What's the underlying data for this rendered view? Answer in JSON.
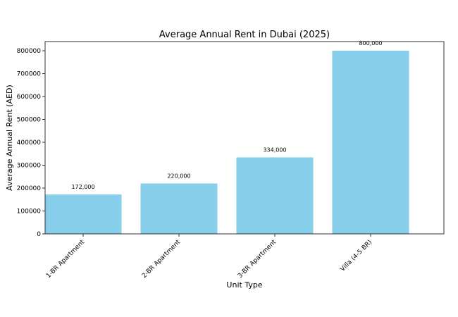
{
  "chart_data": {
    "type": "bar",
    "title": "Average Annual Rent in Dubai (2025)",
    "xlabel": "Unit Type",
    "ylabel": "Average Annual Rent (AED)",
    "categories": [
      "1-BR Apartment",
      "2-BR Apartment",
      "3-BR Apartment",
      "Villa (4-5 BR)"
    ],
    "values": [
      172000,
      220000,
      334000,
      800000
    ],
    "value_labels": [
      "172,000",
      "220,000",
      "334,000",
      "800,000"
    ],
    "ylim": [
      0,
      840000
    ],
    "yticks": [
      0,
      100000,
      200000,
      300000,
      400000,
      500000,
      600000,
      700000,
      800000
    ],
    "ytick_labels": [
      "0",
      "100000",
      "200000",
      "300000",
      "400000",
      "500000",
      "600000",
      "700000",
      "800000"
    ],
    "bar_color": "#87CEEB",
    "grid": false,
    "legend": "none"
  }
}
